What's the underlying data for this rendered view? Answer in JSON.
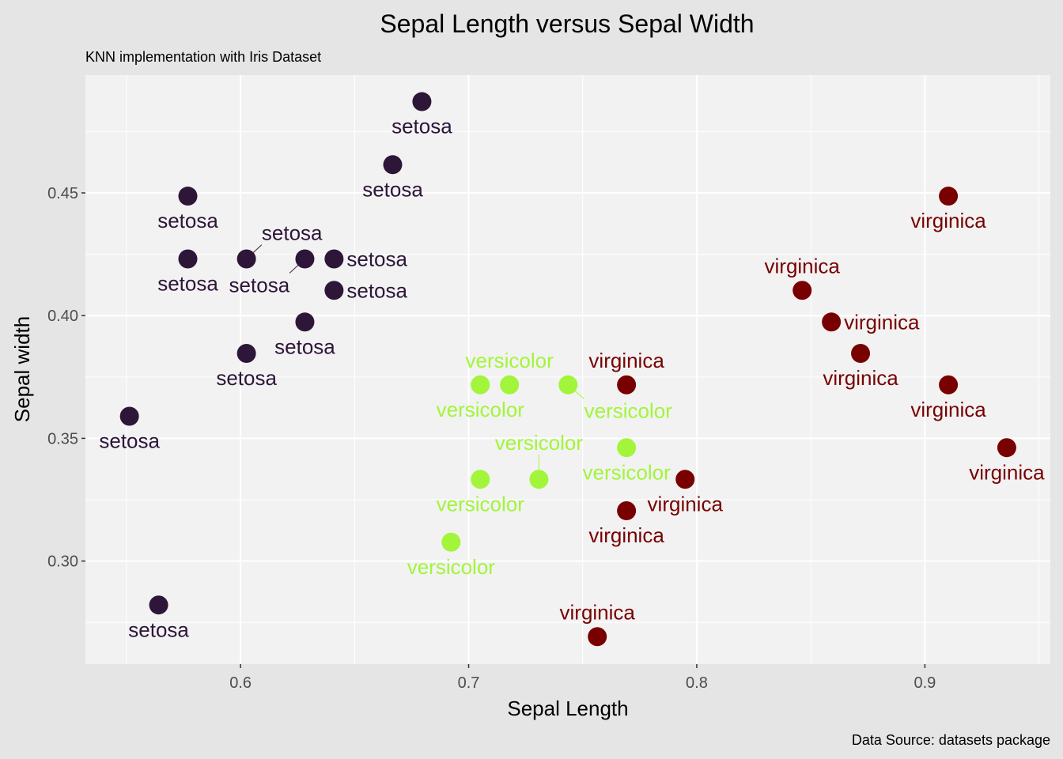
{
  "chart_data": {
    "type": "scatter",
    "title": "Sepal Length versus Sepal Width",
    "subtitle": "KNN implementation with Iris Dataset",
    "caption": "Data Source: datasets package",
    "xlabel": "Sepal Length",
    "ylabel": "Sepal width",
    "xlim": [
      0.532,
      0.955
    ],
    "ylim": [
      0.258,
      0.498
    ],
    "xticks": [
      0.6,
      0.7,
      0.8,
      0.9
    ],
    "xtick_labels": [
      "0.6",
      "0.7",
      "0.8",
      "0.9"
    ],
    "yticks": [
      0.3,
      0.35,
      0.4,
      0.45
    ],
    "ytick_labels": [
      "0.30",
      "0.35",
      "0.40",
      "0.45"
    ],
    "grid": true,
    "legend": "none",
    "colors": {
      "setosa": "#2d1638",
      "versicolor": "#a2f53a",
      "virginica": "#780000"
    },
    "series": [
      {
        "name": "setosa",
        "x": [
          0.6795,
          0.6667,
          0.5769,
          0.5769,
          0.6026,
          0.6282,
          0.641,
          0.641,
          0.6282,
          0.6026,
          0.5513,
          0.5641
        ],
        "y": [
          0.4872,
          0.4615,
          0.4487,
          0.4231,
          0.4231,
          0.4231,
          0.4231,
          0.4103,
          0.3974,
          0.3846,
          0.359,
          0.2821
        ]
      },
      {
        "name": "versicolor",
        "x": [
          0.7051,
          0.7179,
          0.7436,
          0.7692,
          0.7051,
          0.7308,
          0.6923
        ],
        "y": [
          0.3718,
          0.3718,
          0.3718,
          0.3462,
          0.3333,
          0.3333,
          0.3077
        ]
      },
      {
        "name": "virginica",
        "x": [
          0.9103,
          0.8462,
          0.859,
          0.8718,
          0.9103,
          0.7692,
          0.9359,
          0.7949,
          0.7692,
          0.7564
        ],
        "y": [
          0.4487,
          0.4103,
          0.3974,
          0.3846,
          0.3718,
          0.3718,
          0.3462,
          0.3333,
          0.3205,
          0.2692
        ]
      }
    ]
  }
}
